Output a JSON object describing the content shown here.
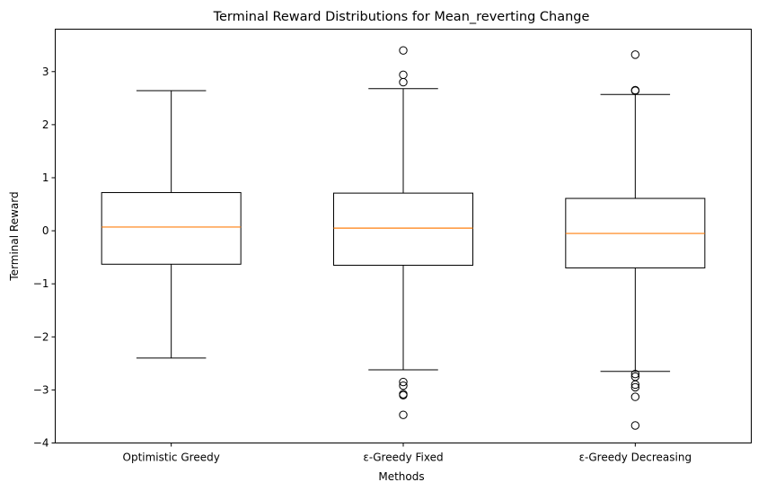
{
  "chart_data": {
    "type": "box",
    "title": "Terminal Reward Distributions for Mean_reverting Change",
    "xlabel": "Methods",
    "ylabel": "Terminal Reward",
    "ylim": [
      -4,
      3.8
    ],
    "yticks": [
      -4,
      -3,
      -2,
      -1,
      0,
      1,
      2,
      3
    ],
    "grid": false,
    "colors": {
      "box": "#000000",
      "median": "#ff7f0e"
    },
    "boxes": [
      {
        "label": "Optimistic Greedy",
        "whisker_low": -2.4,
        "q1": -0.63,
        "median": 0.07,
        "q3": 0.72,
        "whisker_high": 2.64,
        "fliers": []
      },
      {
        "label": "ε-Greedy Fixed",
        "whisker_low": -2.62,
        "q1": -0.65,
        "median": 0.05,
        "q3": 0.71,
        "whisker_high": 2.68,
        "fliers": [
          3.4,
          2.94,
          2.8,
          -2.85,
          -2.92,
          -3.08,
          -3.1,
          -3.47
        ]
      },
      {
        "label": "ε-Greedy Decreasing",
        "whisker_low": -2.65,
        "q1": -0.7,
        "median": -0.05,
        "q3": 0.61,
        "whisker_high": 2.57,
        "fliers": [
          3.32,
          2.64,
          2.65,
          -2.7,
          -2.75,
          -2.9,
          -2.95,
          -3.13,
          -3.67
        ]
      }
    ]
  }
}
